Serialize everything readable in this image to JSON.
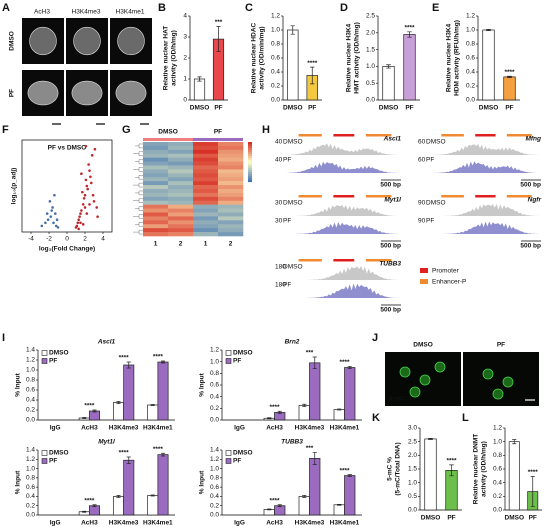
{
  "panel_labels": [
    "A",
    "B",
    "C",
    "D",
    "E",
    "F",
    "G",
    "H",
    "I",
    "J",
    "K",
    "L"
  ],
  "images_a": {
    "columns": [
      "AcH3",
      "H3K4me3",
      "H3K4me1"
    ],
    "rows": [
      "DMSO",
      "PF"
    ]
  },
  "images_j": {
    "columns": [
      "DMSO",
      "PF"
    ],
    "stain": "5-mC"
  },
  "tracks": {
    "genes": [
      {
        "name": "Ascl1",
        "scale": "40",
        "samples": [
          "DMSO",
          "PF"
        ],
        "scale_bar": "500 bp"
      },
      {
        "name": "Mfng",
        "scale": "60",
        "samples": [
          "DMSO",
          "PF"
        ],
        "scale_bar": "500 bp"
      },
      {
        "name": "Myt1l",
        "scale": "30",
        "samples": [
          "DMSO",
          "PF"
        ],
        "scale_bar": "500 bp"
      },
      {
        "name": "Ngfr",
        "scale": "90",
        "samples": [
          "DMSO",
          "PF"
        ],
        "scale_bar": "500 bp"
      },
      {
        "name": "TUBB3",
        "scale": "180",
        "samples": [
          "DMSO",
          "PF"
        ],
        "scale_bar": "500 bp"
      }
    ],
    "legend": [
      {
        "name": "Promoter",
        "color": "#e02020"
      },
      {
        "name": "Enhancer-P",
        "color": "#f08a30"
      }
    ]
  },
  "chart_data": [
    {
      "type": "bar",
      "ylabel": [
        "Relative nuclear HAT",
        "activity (OD/h/mg)"
      ],
      "categories": [
        "DMSO",
        "PF"
      ],
      "values": [
        1.0,
        2.9
      ],
      "errors": [
        0.1,
        0.6
      ],
      "colors": [
        "#ffffff",
        "#e8474c"
      ],
      "ylim": [
        0,
        4
      ],
      "yticks": [
        0,
        1,
        2,
        3,
        4
      ],
      "annotations": [
        null,
        "***"
      ]
    },
    {
      "type": "bar",
      "ylabel": [
        "Relative nuclear HDAC",
        "activity (OD/min/mg)"
      ],
      "categories": [
        "DMSO",
        "PF"
      ],
      "values": [
        1.0,
        0.35
      ],
      "errors": [
        0.06,
        0.12
      ],
      "colors": [
        "#ffffff",
        "#f5c842"
      ],
      "ylim": [
        0,
        1.2
      ],
      "yticks": [
        {
          "value": 0,
          "label": "0.0"
        },
        0.2,
        0.4,
        0.6,
        0.8,
        {
          "value": 1,
          "label": "1.0"
        },
        1.2
      ],
      "annotations": [
        null,
        "****"
      ]
    },
    {
      "type": "bar",
      "ylabel": [
        "Relative nuclear H3K4",
        "HMT activity (OD/h/mg)"
      ],
      "categories": [
        "DMSO",
        "PF"
      ],
      "values": [
        1.0,
        1.95
      ],
      "errors": [
        0.05,
        0.08
      ],
      "colors": [
        "#ffffff",
        "#c8a0d8"
      ],
      "ylim": [
        0,
        2.5
      ],
      "yticks": [
        {
          "value": 0,
          "label": "0.0"
        },
        0.5,
        {
          "value": 1,
          "label": "1.0"
        },
        1.5,
        {
          "value": 2,
          "label": "2.0"
        },
        2.5
      ],
      "annotations": [
        null,
        "****"
      ]
    },
    {
      "type": "bar",
      "ylabel": [
        "Relative nuclear H3K4",
        "HDM activity (RFU/h/mg)"
      ],
      "categories": [
        "DMSO",
        "PF"
      ],
      "values": [
        1.0,
        0.33
      ],
      "errors": [
        0.01,
        0.01
      ],
      "colors": [
        "#ffffff",
        "#f5a040"
      ],
      "ylim": [
        0,
        1.2
      ],
      "yticks": [
        {
          "value": 0,
          "label": "0.0"
        },
        0.2,
        0.4,
        0.6,
        0.8,
        {
          "value": 1,
          "label": "1.0"
        },
        1.2
      ],
      "annotations": [
        null,
        "****"
      ]
    },
    {
      "type": "scatter",
      "title": "PF vs DMSO",
      "xlabel": "log₂(Fold Change)",
      "ylabel": "log₁₀(p_adj)",
      "xlim": [
        -5,
        5
      ],
      "xticks": [
        -4,
        -2,
        0,
        2,
        4
      ],
      "ylim": [
        0,
        30
      ],
      "series": [
        {
          "color": "#4a6fa5",
          "x": [
            -1.2,
            -1.5,
            -1.8,
            -2.1,
            -1.3,
            -1.6,
            -2.4,
            -1.9,
            -1.1,
            -2.8,
            -1.4,
            -1.7,
            -1.0,
            -2.2
          ],
          "y": [
            2,
            3,
            5,
            4,
            6,
            8,
            3,
            10,
            4,
            2,
            12,
            7,
            1.5,
            6
          ]
        },
        {
          "color": "#c0282d",
          "x": [
            1.1,
            1.3,
            1.5,
            1.8,
            2.0,
            2.2,
            2.5,
            2.8,
            3.1,
            1.2,
            1.6,
            1.9,
            2.3,
            2.6,
            3.0,
            3.3,
            1.4,
            1.7,
            2.1,
            2.4,
            2.7,
            1.0,
            1.5,
            2.0,
            2.9,
            1.3,
            1.8,
            2.2,
            2.5,
            3.4,
            1.6,
            2.1
          ],
          "y": [
            2,
            4,
            6,
            9,
            12,
            15,
            20,
            25,
            27,
            3,
            7,
            11,
            14,
            18,
            10,
            8,
            5,
            13,
            17,
            22,
            16,
            1.5,
            3,
            8,
            12,
            1,
            2.5,
            6,
            9,
            5,
            19,
            28
          ]
        }
      ]
    },
    {
      "type": "heatmap",
      "groups": [
        "DMSO",
        "PF"
      ],
      "column_labels": [
        "1",
        "2",
        "1",
        "2"
      ],
      "vlim": [
        -1.5,
        1.5
      ],
      "values": [
        [
          -1.0,
          -0.9,
          1.4,
          0.9
        ],
        [
          -1.1,
          -0.8,
          1.3,
          1.0
        ],
        [
          -0.9,
          -1.0,
          1.5,
          0.8
        ],
        [
          -0.8,
          -0.7,
          1.2,
          0.7
        ],
        [
          -1.2,
          -0.9,
          1.4,
          0.6
        ],
        [
          -1.0,
          -1.1,
          1.3,
          0.8
        ],
        [
          -0.7,
          -0.8,
          1.1,
          0.9
        ],
        [
          -0.9,
          -0.6,
          1.2,
          0.5
        ],
        [
          -1.0,
          -0.8,
          1.3,
          0.6
        ],
        [
          -0.8,
          -1.0,
          1.2,
          0.7
        ],
        [
          -1.1,
          -0.7,
          1.4,
          0.5
        ],
        [
          -0.6,
          -0.9,
          1.1,
          0.8
        ],
        [
          -0.9,
          -0.8,
          1.2,
          0.6
        ],
        [
          -0.8,
          -0.7,
          1.0,
          0.7
        ],
        [
          -1.0,
          -0.9,
          1.3,
          0.9
        ],
        [
          -0.7,
          -0.8,
          1.1,
          0.6
        ],
        [
          1.0,
          0.6,
          -0.9,
          -0.8
        ],
        [
          0.8,
          0.9,
          -1.0,
          -0.7
        ],
        [
          1.2,
          0.7,
          -0.8,
          -0.9
        ],
        [
          0.9,
          1.1,
          -1.1,
          -0.6
        ],
        [
          1.1,
          0.8,
          -0.9,
          -1.0
        ],
        [
          0.7,
          1.0,
          -1.0,
          -0.8
        ],
        [
          1.3,
          1.2,
          -1.2,
          -0.9
        ],
        [
          1.0,
          0.9,
          -0.8,
          -1.1
        ]
      ]
    },
    {
      "type": "bar",
      "title": "Ascl1",
      "ylabel": [
        "% Input"
      ],
      "categories": [
        "IgG",
        "AcH3",
        "H3K4me3",
        "H3K4me1"
      ],
      "ylim": [
        0,
        1.4
      ],
      "yticks": [
        {
          "value": 0,
          "label": "0.0"
        },
        0.2,
        0.4,
        0.6,
        0.8,
        {
          "value": 1,
          "label": "1.0"
        },
        1.2,
        1.4
      ],
      "series": [
        {
          "name": "DMSO",
          "color": "#ffffff",
          "values": [
            0,
            0.04,
            0.35,
            0.3
          ],
          "errors": [
            0,
            0.01,
            0.02,
            0.01
          ]
        },
        {
          "name": "PF",
          "color": "#9b6bc0",
          "values": [
            0,
            0.18,
            1.1,
            1.16
          ],
          "errors": [
            0,
            0.02,
            0.06,
            0.02
          ]
        }
      ],
      "annotations": [
        null,
        "****",
        "****",
        "****"
      ]
    },
    {
      "type": "bar",
      "title": "Brn2",
      "ylabel": [
        "% Input"
      ],
      "categories": [
        "IgG",
        "AcH3",
        "H3K4me3",
        "H3K4me1"
      ],
      "ylim": [
        0,
        1.2
      ],
      "yticks": [
        {
          "value": 0,
          "label": "0.0"
        },
        0.2,
        0.4,
        0.6,
        0.8,
        {
          "value": 1,
          "label": "1.0"
        },
        1.2
      ],
      "series": [
        {
          "name": "DMSO",
          "color": "#ffffff",
          "values": [
            0,
            0.03,
            0.25,
            0.18
          ],
          "errors": [
            0,
            0.01,
            0.02,
            0.01
          ]
        },
        {
          "name": "PF",
          "color": "#9b6bc0",
          "values": [
            0,
            0.13,
            0.98,
            0.9
          ],
          "errors": [
            0,
            0.02,
            0.1,
            0.02
          ]
        }
      ],
      "annotations": [
        null,
        "****",
        "***",
        "****"
      ]
    },
    {
      "type": "bar",
      "title": "Myt1l",
      "ylabel": [
        "% Input"
      ],
      "categories": [
        "IgG",
        "AcH3",
        "H3K4me3",
        "H3K4me1"
      ],
      "ylim": [
        0,
        1.4
      ],
      "yticks": [
        {
          "value": 0,
          "label": "0.0"
        },
        0.2,
        0.4,
        0.6,
        0.8,
        {
          "value": 1,
          "label": "1.0"
        },
        1.2,
        1.4
      ],
      "series": [
        {
          "name": "DMSO",
          "color": "#ffffff",
          "values": [
            0,
            0.07,
            0.4,
            0.42
          ],
          "errors": [
            0,
            0.01,
            0.02,
            0.01
          ]
        },
        {
          "name": "PF",
          "color": "#9b6bc0",
          "values": [
            0,
            0.2,
            1.18,
            1.3
          ],
          "errors": [
            0,
            0.02,
            0.07,
            0.03
          ]
        }
      ],
      "annotations": [
        null,
        "****",
        "****",
        "****"
      ]
    },
    {
      "type": "bar",
      "title": "TUBB3",
      "ylabel": [
        "% Input"
      ],
      "categories": [
        "IgG",
        "AcH3",
        "H3K4me3",
        "H3K4me1"
      ],
      "ylim": [
        0,
        1.4
      ],
      "yticks": [
        {
          "value": 0,
          "label": "0.0"
        },
        0.2,
        0.4,
        0.6,
        0.8,
        {
          "value": 1,
          "label": "1.0"
        },
        1.2,
        1.4
      ],
      "series": [
        {
          "name": "DMSO",
          "color": "#ffffff",
          "values": [
            0,
            0.12,
            0.4,
            0.22
          ],
          "errors": [
            0,
            0.01,
            0.02,
            0.01
          ]
        },
        {
          "name": "PF",
          "color": "#9b6bc0",
          "values": [
            0,
            0.2,
            1.22,
            0.85
          ],
          "errors": [
            0,
            0.02,
            0.13,
            0.02
          ]
        }
      ],
      "annotations": [
        null,
        "****",
        "***",
        "****"
      ]
    },
    {
      "type": "bar",
      "ylabel": [
        "5-mC %",
        "(5-mC/Total DNA)"
      ],
      "categories": [
        "DMSO",
        "PF"
      ],
      "values": [
        2.6,
        1.45
      ],
      "errors": [
        0.02,
        0.2
      ],
      "colors": [
        "#ffffff",
        "#6cbf4a"
      ],
      "ylim": [
        0,
        3
      ],
      "yticks": [
        {
          "value": 0,
          "label": "0.0"
        },
        0.5,
        {
          "value": 1,
          "label": "1.0"
        },
        1.5,
        {
          "value": 2,
          "label": "2.0"
        },
        2.5,
        {
          "value": 3,
          "label": "3.0"
        }
      ],
      "annotations": [
        null,
        "****"
      ]
    },
    {
      "type": "bar",
      "ylabel": [
        "Relative nuclear DNMT",
        "activity (OD/h/mg)"
      ],
      "categories": [
        "DMSO",
        "PF"
      ],
      "values": [
        1.0,
        0.27
      ],
      "errors": [
        0.03,
        0.22
      ],
      "colors": [
        "#ffffff",
        "#6cbf4a"
      ],
      "ylim": [
        0,
        1.2
      ],
      "yticks": [
        {
          "value": 0,
          "label": "0.0"
        },
        0.2,
        0.4,
        0.6,
        0.8,
        {
          "value": 1,
          "label": "1.0"
        },
        1.2
      ],
      "annotations": [
        null,
        "****"
      ]
    }
  ]
}
